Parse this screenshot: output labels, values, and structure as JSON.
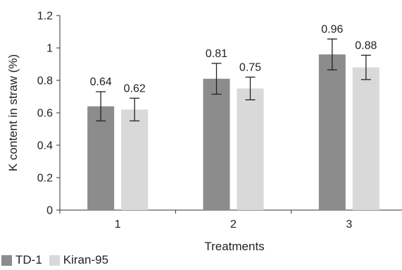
{
  "chart_data": {
    "type": "bar",
    "categories": [
      "1",
      "2",
      "3"
    ],
    "series": [
      {
        "name": "TD-1",
        "values": [
          0.64,
          0.81,
          0.96
        ],
        "errors": [
          0.09,
          0.095,
          0.095
        ],
        "color": "#8c8c8d"
      },
      {
        "name": "Kiran-95",
        "values": [
          0.62,
          0.75,
          0.88
        ],
        "errors": [
          0.07,
          0.07,
          0.075
        ],
        "color": "#d9d9da"
      }
    ],
    "data_labels": [
      [
        "0.64",
        "0.81",
        "0.96"
      ],
      [
        "0.62",
        "0.75",
        "0.88"
      ]
    ],
    "xlabel": "Treatments",
    "ylabel": "K content in straw (%)",
    "ylim": [
      0,
      1.2
    ],
    "yticks": [
      {
        "value": 0,
        "label": "0"
      },
      {
        "value": 0.2,
        "label": "0.2"
      },
      {
        "value": 0.4,
        "label": "0.4"
      },
      {
        "value": 0.6,
        "label": "0.6"
      },
      {
        "value": 0.8,
        "label": "0.8"
      },
      {
        "value": 1,
        "label": "1"
      },
      {
        "value": 1.2,
        "label": "1.2"
      }
    ],
    "grid": false,
    "legend_position": "bottom-left"
  }
}
